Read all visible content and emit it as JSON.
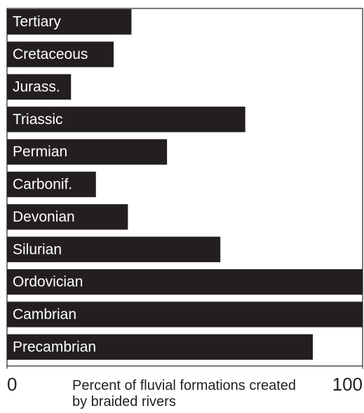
{
  "chart_data": {
    "type": "barh",
    "xlabel": "Percent of fluvial formations created by braided rivers",
    "categories": [
      "Tertiary",
      "Cretaceous",
      "Jurass.",
      "Triassic",
      "Permian",
      "Carbonif.",
      "Devonian",
      "Silurian",
      "Ordovician",
      "Cambrian",
      "Precambrian"
    ],
    "values": [
      35,
      30,
      18,
      67,
      45,
      25,
      34,
      60,
      100,
      100,
      86
    ],
    "color": "#231f20",
    "xlim": [
      0,
      100
    ],
    "xticks": [
      0,
      100
    ],
    "grid": false
  }
}
